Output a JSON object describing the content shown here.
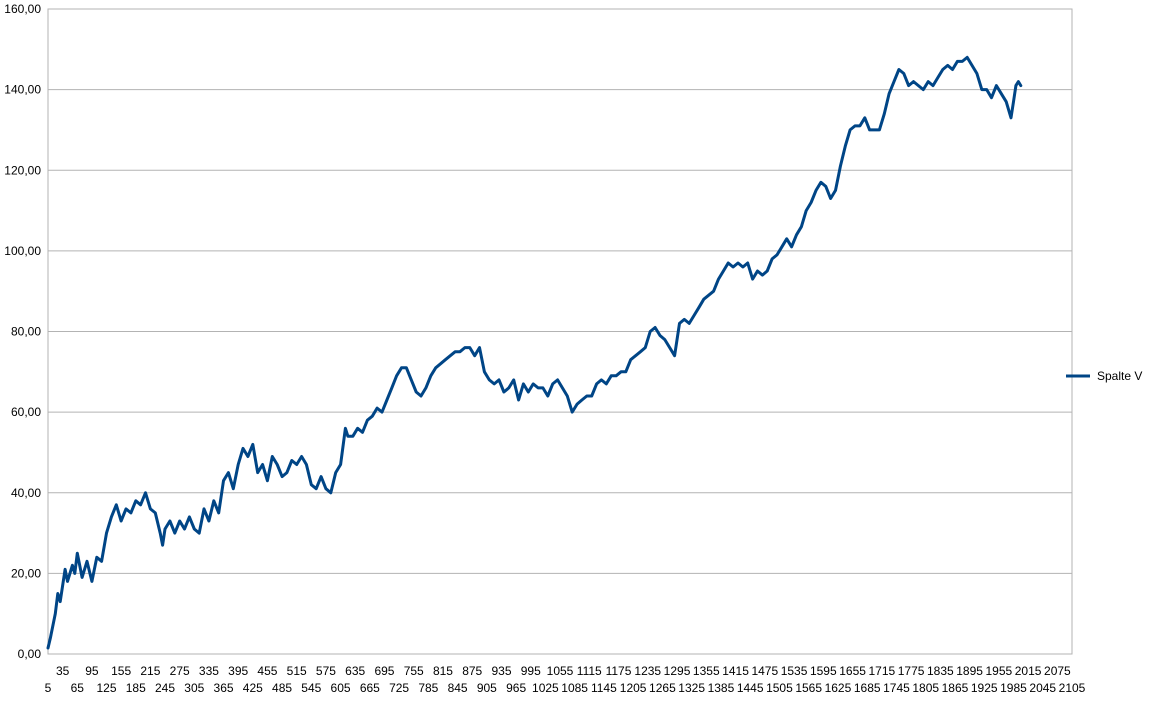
{
  "chart_data": {
    "type": "line",
    "title": "",
    "xlabel": "",
    "ylabel": "",
    "ylim": [
      0,
      160
    ],
    "xlim": [
      5,
      2105
    ],
    "y_ticks": [
      0,
      20,
      40,
      60,
      80,
      100,
      120,
      140,
      160
    ],
    "y_tick_labels": [
      "0,00",
      "20,00",
      "40,00",
      "60,00",
      "80,00",
      "100,00",
      "120,00",
      "140,00",
      "160,00"
    ],
    "x_tick_labels_top": [
      "35",
      "95",
      "155",
      "215",
      "275",
      "335",
      "395",
      "455",
      "515",
      "575",
      "635",
      "695",
      "755",
      "815",
      "875",
      "935",
      "995",
      "1055",
      "1115",
      "1175",
      "1235",
      "1295",
      "1355",
      "1415",
      "1475",
      "1535",
      "1595",
      "1655",
      "1715",
      "1775",
      "1835",
      "1895",
      "1955",
      "2015",
      "2075"
    ],
    "x_tick_labels_bottom": [
      "5",
      "65",
      "125",
      "185",
      "245",
      "305",
      "365",
      "425",
      "485",
      "545",
      "605",
      "665",
      "725",
      "785",
      "845",
      "905",
      "965",
      "1025",
      "1085",
      "1145",
      "1205",
      "1265",
      "1325",
      "1385",
      "1445",
      "1505",
      "1565",
      "1625",
      "1685",
      "1745",
      "1805",
      "1865",
      "1925",
      "1985",
      "2045",
      "2105"
    ],
    "grid": true,
    "legend_position": "right",
    "series": [
      {
        "name": "Spalte V",
        "color": "#004586",
        "x": [
          5,
          10,
          20,
          25,
          30,
          40,
          45,
          55,
          60,
          65,
          75,
          85,
          95,
          105,
          115,
          125,
          135,
          145,
          155,
          165,
          175,
          185,
          195,
          205,
          215,
          225,
          235,
          240,
          245,
          255,
          265,
          275,
          285,
          295,
          305,
          315,
          325,
          335,
          345,
          355,
          365,
          375,
          385,
          395,
          405,
          415,
          425,
          435,
          445,
          455,
          465,
          475,
          485,
          495,
          505,
          515,
          525,
          535,
          545,
          555,
          565,
          575,
          585,
          595,
          605,
          615,
          620,
          630,
          640,
          650,
          660,
          670,
          680,
          690,
          700,
          710,
          720,
          730,
          740,
          750,
          760,
          770,
          780,
          790,
          800,
          810,
          820,
          830,
          840,
          850,
          860,
          870,
          880,
          890,
          900,
          910,
          920,
          930,
          940,
          950,
          960,
          970,
          980,
          990,
          1000,
          1010,
          1020,
          1030,
          1040,
          1050,
          1060,
          1070,
          1080,
          1090,
          1100,
          1110,
          1120,
          1130,
          1140,
          1150,
          1160,
          1170,
          1180,
          1190,
          1200,
          1210,
          1220,
          1230,
          1240,
          1250,
          1260,
          1270,
          1280,
          1290,
          1300,
          1310,
          1320,
          1330,
          1340,
          1350,
          1360,
          1370,
          1380,
          1390,
          1400,
          1410,
          1420,
          1430,
          1440,
          1450,
          1460,
          1470,
          1480,
          1490,
          1500,
          1510,
          1520,
          1530,
          1540,
          1550,
          1560,
          1570,
          1580,
          1590,
          1600,
          1610,
          1620,
          1630,
          1640,
          1650,
          1660,
          1670,
          1680,
          1690,
          1700,
          1710,
          1720,
          1730,
          1740,
          1750,
          1760,
          1770,
          1780,
          1790,
          1800,
          1810,
          1820,
          1830,
          1840,
          1850,
          1860,
          1870,
          1880,
          1890,
          1900,
          1910,
          1920,
          1930,
          1940,
          1950,
          1960,
          1970,
          1980,
          1985,
          1990,
          1995,
          2000
        ],
        "values": [
          1.5,
          4,
          10,
          15,
          13,
          21,
          18,
          22,
          20,
          25,
          19,
          23,
          18,
          24,
          23,
          30,
          34,
          37,
          33,
          36,
          35,
          38,
          37,
          40,
          36,
          35,
          30,
          27,
          31,
          33,
          30,
          33,
          31,
          34,
          31,
          30,
          36,
          33,
          38,
          35,
          43,
          45,
          41,
          47,
          51,
          49,
          52,
          45,
          47,
          43,
          49,
          47,
          44,
          45,
          48,
          47,
          49,
          47,
          42,
          41,
          44,
          41,
          40,
          45,
          47,
          56,
          54,
          54,
          56,
          55,
          58,
          59,
          61,
          60,
          63,
          66,
          69,
          71,
          71,
          68,
          65,
          64,
          66,
          69,
          71,
          72,
          73,
          74,
          75,
          75,
          76,
          76,
          74,
          76,
          70,
          68,
          67,
          68,
          65,
          66,
          68,
          63,
          67,
          65,
          67,
          66,
          66,
          64,
          67,
          68,
          66,
          64,
          60,
          62,
          63,
          64,
          64,
          67,
          68,
          67,
          69,
          69,
          70,
          70,
          73,
          74,
          75,
          76,
          80,
          81,
          79,
          78,
          76,
          74,
          82,
          83,
          82,
          84,
          86,
          88,
          89,
          90,
          93,
          95,
          97,
          96,
          97,
          96,
          97,
          93,
          95,
          94,
          95,
          98,
          99,
          101,
          103,
          101,
          104,
          106,
          110,
          112,
          115,
          117,
          116,
          113,
          115,
          121,
          126,
          130,
          131,
          131,
          133,
          130,
          130,
          130,
          134,
          139,
          142,
          145,
          144,
          141,
          142,
          141,
          140,
          142,
          141,
          143,
          145,
          146,
          145,
          147,
          147,
          148,
          146,
          144,
          140,
          140,
          138,
          141,
          139,
          137,
          133,
          137,
          141,
          142,
          141
        ]
      }
    ]
  }
}
